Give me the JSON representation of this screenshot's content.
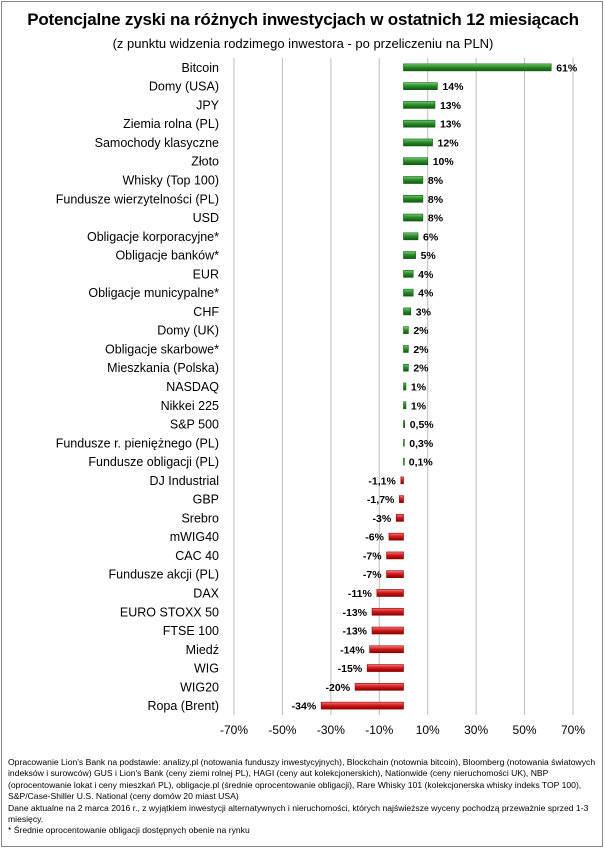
{
  "title": "Potencjalne zyski na różnych inwestycjach w ostatnich 12 miesiącach",
  "subtitle": "(z punktu  widzenia rodzimego  inwestora - po przeliczeniu na PLN)",
  "colors": {
    "positive": "#2e8b2e",
    "positive_light": "#6fd06f",
    "positive_dark": "#0f5a0f",
    "negative": "#d01c1c",
    "negative_light": "#ff7a7a",
    "negative_dark": "#8a0000",
    "grid": "#bdbdbd"
  },
  "chart_data": {
    "type": "bar",
    "orientation": "horizontal",
    "categories": [
      "Bitcoin",
      "Domy (USA)",
      "JPY",
      "Ziemia rolna (PL)",
      "Samochody klasyczne",
      "Złoto",
      "Whisky (Top 100)",
      "Fundusze wierzytelności (PL)",
      "USD",
      "Obligacje korporacyjne*",
      "Obligacje banków*",
      "EUR",
      "Obligacje municypalne*",
      "CHF",
      "Domy (UK)",
      "Obligacje skarbowe*",
      "Mieszkania (Polska)",
      "NASDAQ",
      "Nikkei 225",
      "S&P 500",
      "Fundusze r. pieniężnego (PL)",
      "Fundusze obligacji (PL)",
      "DJ Industrial",
      "GBP",
      "Srebro",
      "mWIG40",
      "CAC 40",
      "Fundusze akcji (PL)",
      "DAX",
      "EURO STOXX 50",
      "FTSE 100",
      "Miedź",
      "WIG",
      "WIG20",
      "Ropa (Brent)"
    ],
    "values": [
      61,
      14,
      13,
      13,
      12,
      10,
      8,
      8,
      8,
      6,
      5,
      4,
      4,
      3,
      2,
      2,
      2,
      1,
      1,
      0.5,
      0.3,
      0.1,
      -1.1,
      -1.7,
      -3,
      -6,
      -7,
      -7,
      -11,
      -13,
      -13,
      -14,
      -15,
      -20,
      -34
    ],
    "labels": [
      "61%",
      "14%",
      "13%",
      "13%",
      "12%",
      "10%",
      "8%",
      "8%",
      "8%",
      "6%",
      "5%",
      "4%",
      "4%",
      "3%",
      "2%",
      "2%",
      "2%",
      "1%",
      "1%",
      "0,5%",
      "0,3%",
      "0,1%",
      "-1,1%",
      "-1,7%",
      "-3%",
      "-6%",
      "-7%",
      "-7%",
      "-11%",
      "-13%",
      "-13%",
      "-14%",
      "-15%",
      "-20%",
      "-34%"
    ],
    "xlim": [
      -70,
      70
    ],
    "xticks": [
      -70,
      -50,
      -30,
      -10,
      10,
      30,
      50,
      70
    ],
    "xtick_labels": [
      "-70%",
      "-50%",
      "-30%",
      "-10%",
      "10%",
      "30%",
      "50%",
      "70%"
    ],
    "grid": true,
    "legend": "none"
  },
  "footnote": {
    "source": "Opracowanie Lion's Bank na podstawie: analizy.pl (notowania funduszy inwestycyjnych), Blockchain (notownia bitcoin), Bloomberg (notowania światowych indeksów i surowców) GUS i Lion's Bank (ceny ziemi rolnej PL), HAGI (ceny aut kolekcjonerskich), Nationwide (ceny nieruchomości UK), NBP (oprocentowanie lokat i ceny mieszkań PL), obligacje.pl (średnie oprocentowanie obligacji), Rare Whisky 101 (kolekcjonerska whisky indeks TOP 100), S&P/Case-Shiller U.S. National (ceny domów 20 miast USA)",
    "date_note": "Dane aktualne na 2 marca 2016 r., z wyjątkiem inwestycji alternatywnych i nieruchomości, których najświeższe wyceny pochodzą przeważnie sprzed 1-3 miesięcy.",
    "asterisk_note": "* Średnie oprocentowanie obligacji dostępnych obenie na rynku"
  }
}
